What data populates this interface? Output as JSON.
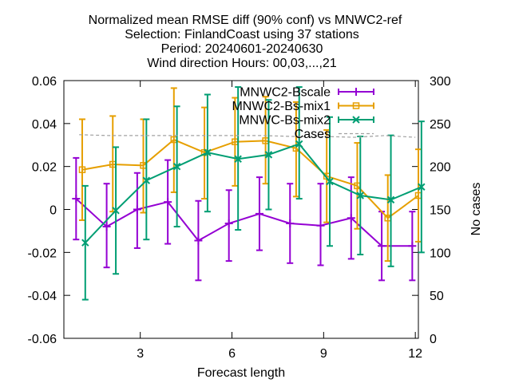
{
  "chart_data": {
    "type": "line",
    "title_lines": [
      "Normalized mean RMSE diff (90% conf) vs MNWC2-ref",
      "Selection: FinlandCoast using    37 stations",
      "Period: 20240601-20240630",
      "Wind direction   Hours: 00,03,...,21"
    ],
    "xlabel": "Forecast length",
    "ylabel": "",
    "y2label": "No cases",
    "xlim": [
      0.5,
      12.1
    ],
    "ylim": [
      -0.06,
      0.06
    ],
    "y2lim": [
      0,
      300
    ],
    "x_ticks": [
      3,
      6,
      9,
      12
    ],
    "x_tick_labels": [
      "3",
      "6",
      "9",
      "12"
    ],
    "y_ticks": [
      -0.06,
      -0.04,
      -0.02,
      0,
      0.02,
      0.04,
      0.06
    ],
    "y_tick_labels": [
      "-0.06",
      "-0.04",
      "-0.02",
      "0",
      "0.02",
      "0.04",
      "0.06"
    ],
    "y2_ticks": [
      0,
      50,
      100,
      150,
      200,
      250,
      300
    ],
    "y2_tick_labels": [
      "0",
      "50",
      "100",
      "150",
      "200",
      "250",
      "300"
    ],
    "x": [
      1,
      2,
      3,
      4,
      5,
      6,
      7,
      8,
      9,
      10,
      11,
      12
    ],
    "series": [
      {
        "name": "MNWC2-Bscale",
        "color": "#9400d3",
        "marker": "plus",
        "x": [
          0.9,
          1.9,
          2.9,
          3.9,
          4.9,
          5.9,
          6.9,
          7.9,
          8.9,
          9.9,
          10.9,
          11.9
        ],
        "values": [
          0.005,
          -0.008,
          0.0,
          0.0035,
          -0.0145,
          -0.0065,
          -0.002,
          -0.0065,
          -0.0075,
          -0.004,
          -0.017,
          -0.017
        ],
        "err_low": [
          -0.014,
          -0.027,
          -0.018,
          -0.016,
          -0.033,
          -0.024,
          -0.019,
          -0.025,
          -0.026,
          -0.023,
          -0.033,
          -0.033
        ],
        "err_high": [
          0.024,
          0.012,
          0.017,
          0.023,
          0.004,
          0.009,
          0.015,
          0.012,
          0.012,
          0.015,
          -0.001,
          -0.001
        ]
      },
      {
        "name": "MNWC2-Bs-mix1",
        "color": "#e69f00",
        "marker": "square",
        "x": [
          1.1,
          2.1,
          3.1,
          4.1,
          5.1,
          6.1,
          7.1,
          8.1,
          9.1,
          10.1,
          11.1,
          12.1
        ],
        "values": [
          0.0185,
          0.021,
          0.0205,
          0.0325,
          0.0265,
          0.0315,
          0.032,
          0.0285,
          0.0155,
          0.011,
          -0.004,
          0.0065
        ],
        "err_low": [
          -0.005,
          -0.001,
          -0.0015,
          0.008,
          0.005,
          0.011,
          0.012,
          0.006,
          -0.006,
          -0.009,
          -0.024,
          -0.015
        ],
        "err_high": [
          0.042,
          0.0435,
          0.042,
          0.0565,
          0.0475,
          0.052,
          0.0525,
          0.05,
          0.037,
          0.031,
          0.016,
          0.028
        ]
      },
      {
        "name": "MNWC-Bs-mix2",
        "color": "#009e73",
        "marker": "cross",
        "x": [
          1.2,
          2.2,
          3.2,
          4.2,
          5.2,
          6.2,
          7.2,
          8.2,
          9.2,
          10.2,
          11.2,
          12.2
        ],
        "values": [
          -0.0155,
          -0.0005,
          0.0135,
          0.02,
          0.0265,
          0.0235,
          0.0255,
          0.0305,
          0.013,
          0.0065,
          0.0045,
          0.0105
        ],
        "err_low": [
          -0.042,
          -0.03,
          -0.014,
          -0.008,
          -0.001,
          -0.0095,
          0.0,
          0.005,
          -0.017,
          -0.021,
          -0.0265,
          -0.02
        ],
        "err_high": [
          0.011,
          0.029,
          0.042,
          0.048,
          0.0535,
          0.057,
          0.051,
          0.057,
          0.043,
          0.034,
          0.0345,
          0.041
        ]
      },
      {
        "name": "Cases",
        "color": "#a0a0a0",
        "marker": "none",
        "axis": "y2",
        "x": [
          1,
          2,
          3,
          4,
          5,
          6,
          7,
          8,
          9,
          10,
          11,
          12
        ],
        "values": [
          237,
          236,
          236,
          236,
          236,
          236,
          236,
          235,
          235,
          234,
          236,
          234
        ]
      }
    ],
    "legend_position": "top-right",
    "grid": false
  }
}
